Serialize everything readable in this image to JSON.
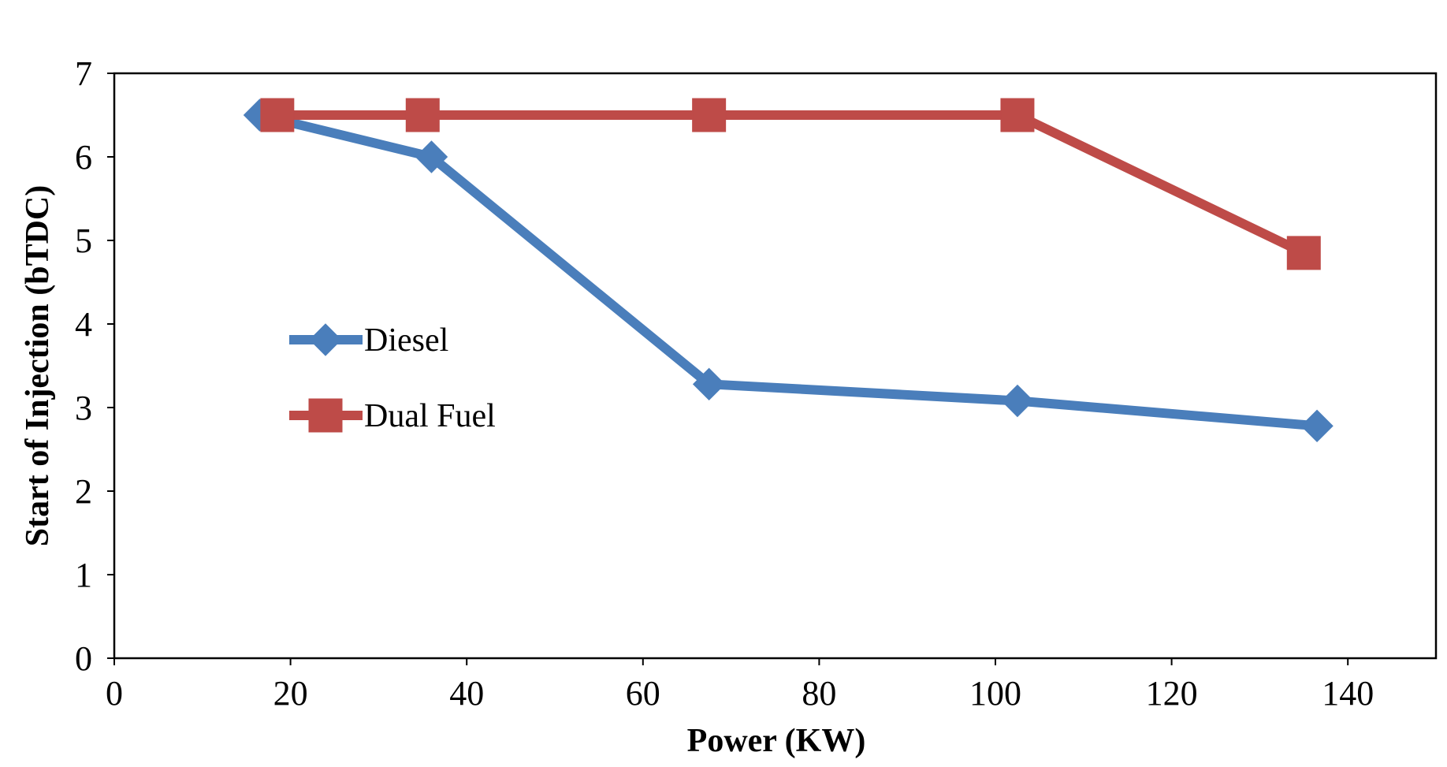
{
  "chart_data": {
    "type": "line",
    "title": "",
    "xlabel": "Power (KW)",
    "ylabel": "Start of Injection (bTDC)",
    "xlim": [
      0,
      150
    ],
    "ylim": [
      0,
      7
    ],
    "xticks": [
      0,
      20,
      40,
      60,
      80,
      100,
      120,
      140
    ],
    "yticks": [
      0,
      1,
      2,
      3,
      4,
      5,
      6,
      7
    ],
    "grid": false,
    "legend_position": "left",
    "series": [
      {
        "name": "Diesel",
        "color": "#4a7ebb",
        "marker": "diamond",
        "x": [
          16.5,
          36,
          67.5,
          102.5,
          136.5
        ],
        "y": [
          6.5,
          6.0,
          3.28,
          3.08,
          2.78
        ]
      },
      {
        "name": "Dual Fuel",
        "color": "#be4b48",
        "marker": "square",
        "x": [
          18.5,
          35,
          67.5,
          102.5,
          135
        ],
        "y": [
          6.5,
          6.5,
          6.5,
          6.5,
          4.85
        ]
      }
    ]
  }
}
